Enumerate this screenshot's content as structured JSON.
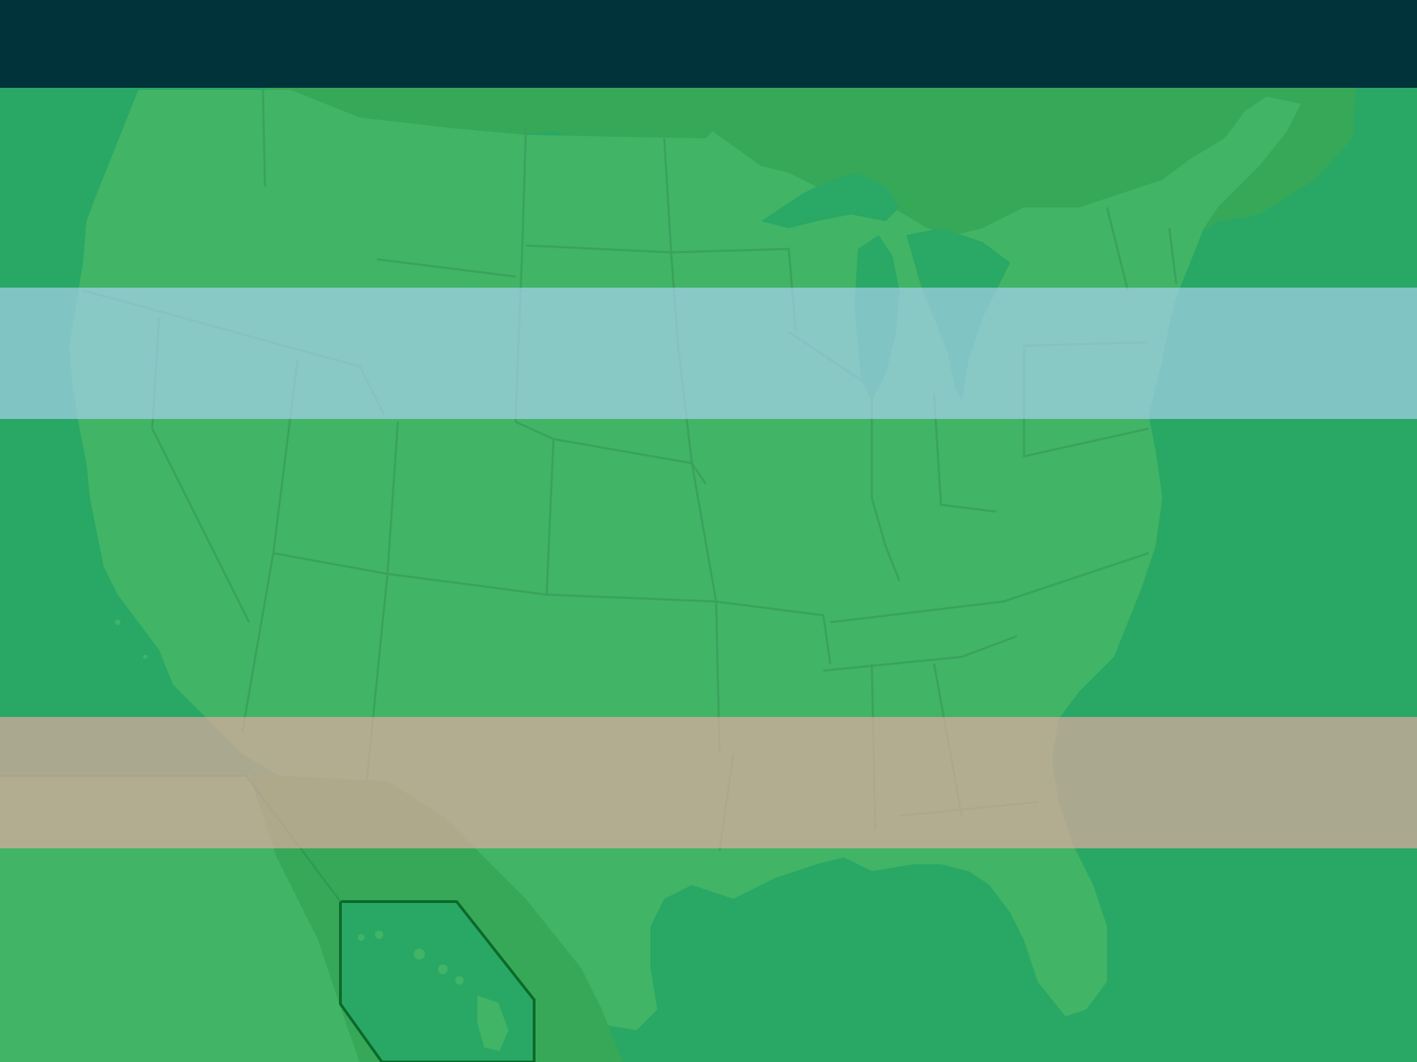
{
  "scene": {
    "description_name": "us-map-game-background",
    "colors": {
      "top_bar": "#00343a",
      "ocean": "#29a865",
      "land": "#41b466",
      "canada": "#37a858",
      "lakes": "#2aa865",
      "state_border": "#3aa25c",
      "inset_border": "#0a6a2a",
      "band_blue": "rgba(169,210,242,0.68)",
      "band_tan": "rgba(232,169,164,0.68)"
    },
    "bands": [
      {
        "name": "blue-band",
        "color": "light-blue"
      },
      {
        "name": "tan-band",
        "color": "light-tan"
      }
    ]
  }
}
